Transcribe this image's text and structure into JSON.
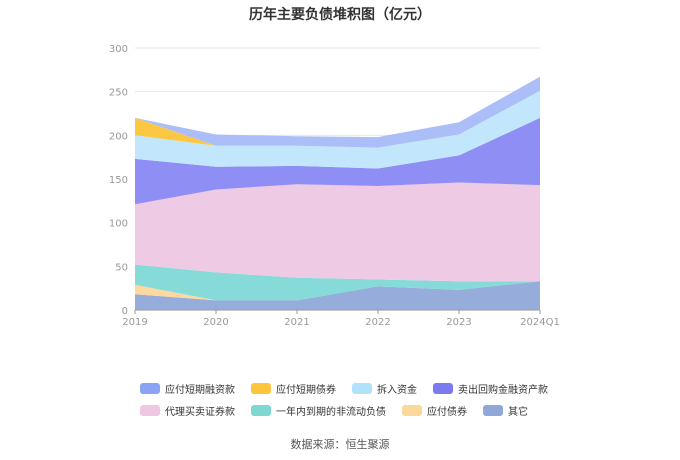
{
  "chart_data": {
    "type": "area",
    "title": "历年主要负债堆积图（亿元）",
    "categories": [
      "2019",
      "2020",
      "2021",
      "2022",
      "2023",
      "2024Q1"
    ],
    "ylim": [
      0,
      300
    ],
    "yticks": [
      "0",
      "50",
      "100",
      "150",
      "200",
      "250",
      "300"
    ],
    "grid": true,
    "legend_position": "bottom",
    "series": [
      {
        "name": "其它",
        "color": "#90a8d8",
        "values": [
          18,
          11,
          11,
          27,
          23,
          33
        ]
      },
      {
        "name": "应付债券",
        "color": "#fcd89a",
        "values": [
          11,
          0,
          0,
          0,
          0,
          0
        ]
      },
      {
        "name": "一年内到期的非流动负债",
        "color": "#80d9d6",
        "values": [
          23,
          32,
          26,
          8,
          10,
          0
        ]
      },
      {
        "name": "代理买卖证券款",
        "color": "#eec7e3",
        "values": [
          69,
          95,
          107,
          107,
          113,
          110
        ]
      },
      {
        "name": "卖出回购金融资产款",
        "color": "#8888f4",
        "values": [
          52,
          26,
          21,
          20,
          31,
          77
        ]
      },
      {
        "name": "拆入资金",
        "color": "#bfe6fc",
        "values": [
          27,
          24,
          23,
          24,
          24,
          31
        ]
      },
      {
        "name": "应付短期债券",
        "color": "#fcc53a",
        "values": [
          20,
          0,
          0,
          0,
          0,
          0
        ]
      },
      {
        "name": "应付短期融资款",
        "color": "#a8baf8",
        "values": [
          0,
          13,
          11,
          12,
          14,
          16
        ]
      }
    ]
  },
  "legend": [
    {
      "label": "应付短期融资款",
      "color": "#8aa3f5"
    },
    {
      "label": "应付短期债券",
      "color": "#fcc53a"
    },
    {
      "label": "拆入资金",
      "color": "#b0e2fb"
    },
    {
      "label": "卖出回购金融资产款",
      "color": "#7b7bef"
    },
    {
      "label": "代理买卖证券款",
      "color": "#eec7e3"
    },
    {
      "label": "一年内到期的非流动负债",
      "color": "#7dd8d4"
    },
    {
      "label": "应付债券",
      "color": "#fcd89a"
    },
    {
      "label": "其它",
      "color": "#90a8d8"
    }
  ],
  "source": "数据来源：恒生聚源"
}
